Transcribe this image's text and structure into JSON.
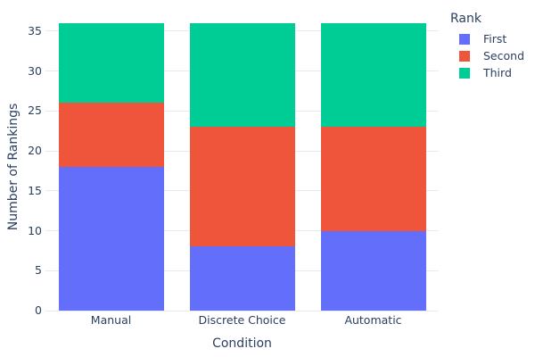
{
  "chart_data": {
    "type": "bar",
    "stacked": true,
    "orientation": "vertical",
    "title": "",
    "xlabel": "Condition",
    "ylabel": "Number of Rankings",
    "categories": [
      "Manual",
      "Discrete Choice",
      "Automatic"
    ],
    "series": [
      {
        "name": "First",
        "color": "#636EFA",
        "values": [
          18,
          8,
          10
        ]
      },
      {
        "name": "Second",
        "color": "#EF553B",
        "values": [
          8,
          15,
          13
        ]
      },
      {
        "name": "Third",
        "color": "#00CC96",
        "values": [
          10,
          13,
          13
        ]
      }
    ],
    "stack_totals": [
      36,
      36,
      36
    ],
    "ylim": [
      0,
      37.9
    ],
    "yticks": [
      0,
      5,
      10,
      15,
      20,
      25,
      30,
      35
    ],
    "grid": true,
    "legend": {
      "title": "Rank",
      "position": "top-right",
      "items": [
        "First",
        "Second",
        "Third"
      ]
    },
    "colors": {
      "text": "#2a3f5f",
      "grid": "#e8eaf3",
      "background": "#ffffff"
    }
  }
}
